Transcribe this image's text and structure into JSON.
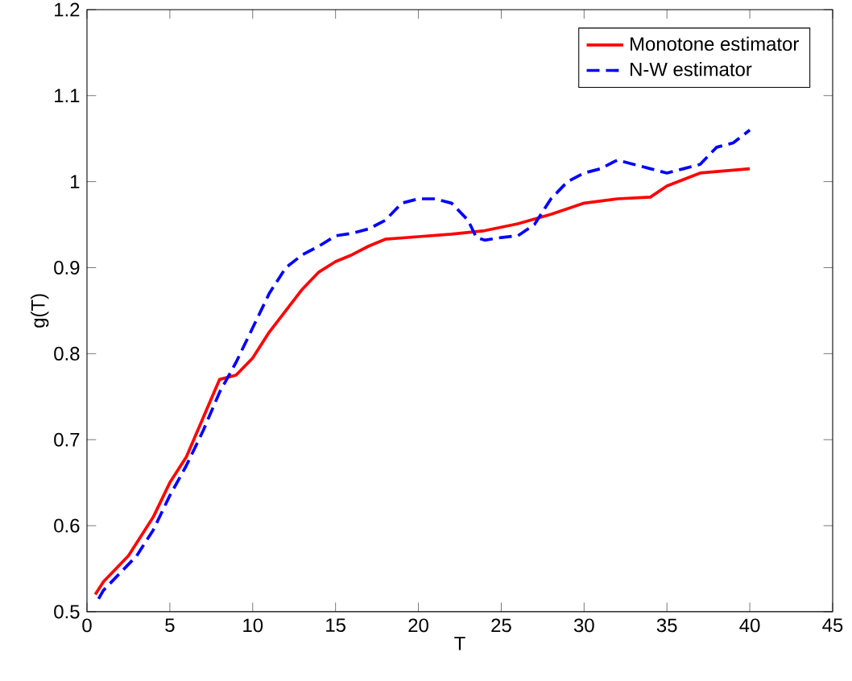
{
  "chart_data": {
    "type": "line",
    "xlabel": "T",
    "ylabel": "g(T)",
    "xlim": [
      0,
      45
    ],
    "ylim": [
      0.5,
      1.2
    ],
    "xticks": [
      0,
      5,
      10,
      15,
      20,
      25,
      30,
      35,
      40,
      45
    ],
    "yticks": [
      0.5,
      0.6,
      0.7,
      0.8,
      0.9,
      1,
      1.1,
      1.2
    ],
    "legend": "top right",
    "grid": false,
    "series": [
      {
        "name": "Monotone estimator",
        "color": "#ff0000",
        "line_style": "solid",
        "x": [
          0.5,
          1,
          2.5,
          4,
          5,
          6,
          7,
          8,
          9,
          10,
          11,
          12,
          13,
          14,
          15,
          16,
          17,
          18,
          20,
          22,
          24,
          26,
          28,
          30,
          32,
          34,
          35,
          37,
          40
        ],
        "values": [
          0.52,
          0.535,
          0.565,
          0.61,
          0.65,
          0.68,
          0.725,
          0.77,
          0.775,
          0.795,
          0.825,
          0.85,
          0.875,
          0.895,
          0.907,
          0.915,
          0.925,
          0.933,
          0.936,
          0.939,
          0.943,
          0.951,
          0.962,
          0.975,
          0.98,
          0.982,
          0.995,
          1.01,
          1.015
        ]
      },
      {
        "name": "N-W estimator",
        "color": "#0000ff",
        "line_style": "dashed",
        "x": [
          0.7,
          1,
          2,
          3,
          4,
          5,
          6,
          7,
          8,
          9,
          10,
          11,
          12,
          13,
          14,
          15,
          16,
          17,
          18,
          19,
          20,
          21,
          22,
          23,
          23.5,
          24,
          25,
          26,
          27,
          28,
          29,
          30,
          31,
          32,
          33,
          34,
          35,
          36,
          37,
          38,
          39,
          40
        ],
        "values": [
          0.515,
          0.525,
          0.545,
          0.565,
          0.595,
          0.635,
          0.67,
          0.71,
          0.755,
          0.79,
          0.83,
          0.87,
          0.9,
          0.915,
          0.925,
          0.937,
          0.94,
          0.945,
          0.955,
          0.975,
          0.98,
          0.98,
          0.975,
          0.955,
          0.935,
          0.932,
          0.935,
          0.937,
          0.95,
          0.98,
          1.0,
          1.01,
          1.015,
          1.025,
          1.02,
          1.015,
          1.01,
          1.015,
          1.02,
          1.04,
          1.045,
          1.06
        ]
      }
    ]
  }
}
